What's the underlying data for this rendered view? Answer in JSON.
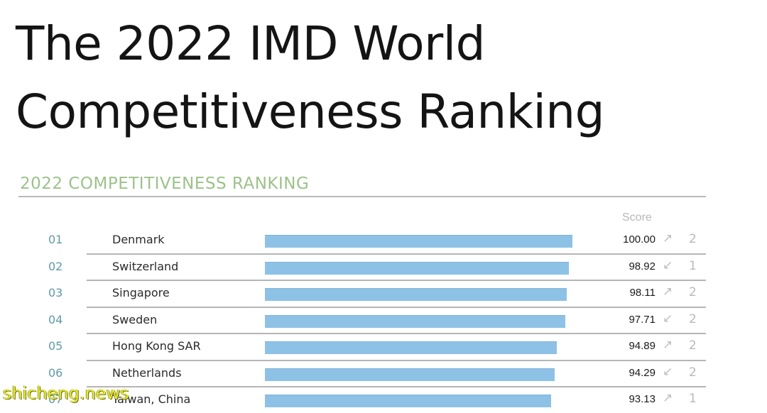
{
  "headline": {
    "line1": "The 2022 IMD World",
    "line2": "Competitiveness Ranking"
  },
  "chart_data": {
    "type": "bar",
    "title": "2022 COMPETITIVENESS RANKING",
    "score_header": "Score",
    "xlim": [
      0,
      100
    ],
    "rows": [
      {
        "rank": "01",
        "country": "Denmark",
        "score": 100.0,
        "score_label": "100.00",
        "direction": "up",
        "change": "2"
      },
      {
        "rank": "02",
        "country": "Switzerland",
        "score": 98.92,
        "score_label": "98.92",
        "direction": "down",
        "change": "1"
      },
      {
        "rank": "03",
        "country": "Singapore",
        "score": 98.11,
        "score_label": "98.11",
        "direction": "up",
        "change": "2"
      },
      {
        "rank": "04",
        "country": "Sweden",
        "score": 97.71,
        "score_label": "97.71",
        "direction": "down",
        "change": "2"
      },
      {
        "rank": "05",
        "country": "Hong Kong SAR",
        "score": 94.89,
        "score_label": "94.89",
        "direction": "up",
        "change": "2"
      },
      {
        "rank": "06",
        "country": "Netherlands",
        "score": 94.29,
        "score_label": "94.29",
        "direction": "down",
        "change": "2"
      },
      {
        "rank": "07",
        "country": "Taiwan, China",
        "score": 93.13,
        "score_label": "93.13",
        "direction": "up",
        "change": "1"
      }
    ],
    "colors": {
      "bar": "#8ec1e6",
      "title": "#9cc28a",
      "rank": "#5f9aa8"
    }
  },
  "watermark": "shicheng.news"
}
